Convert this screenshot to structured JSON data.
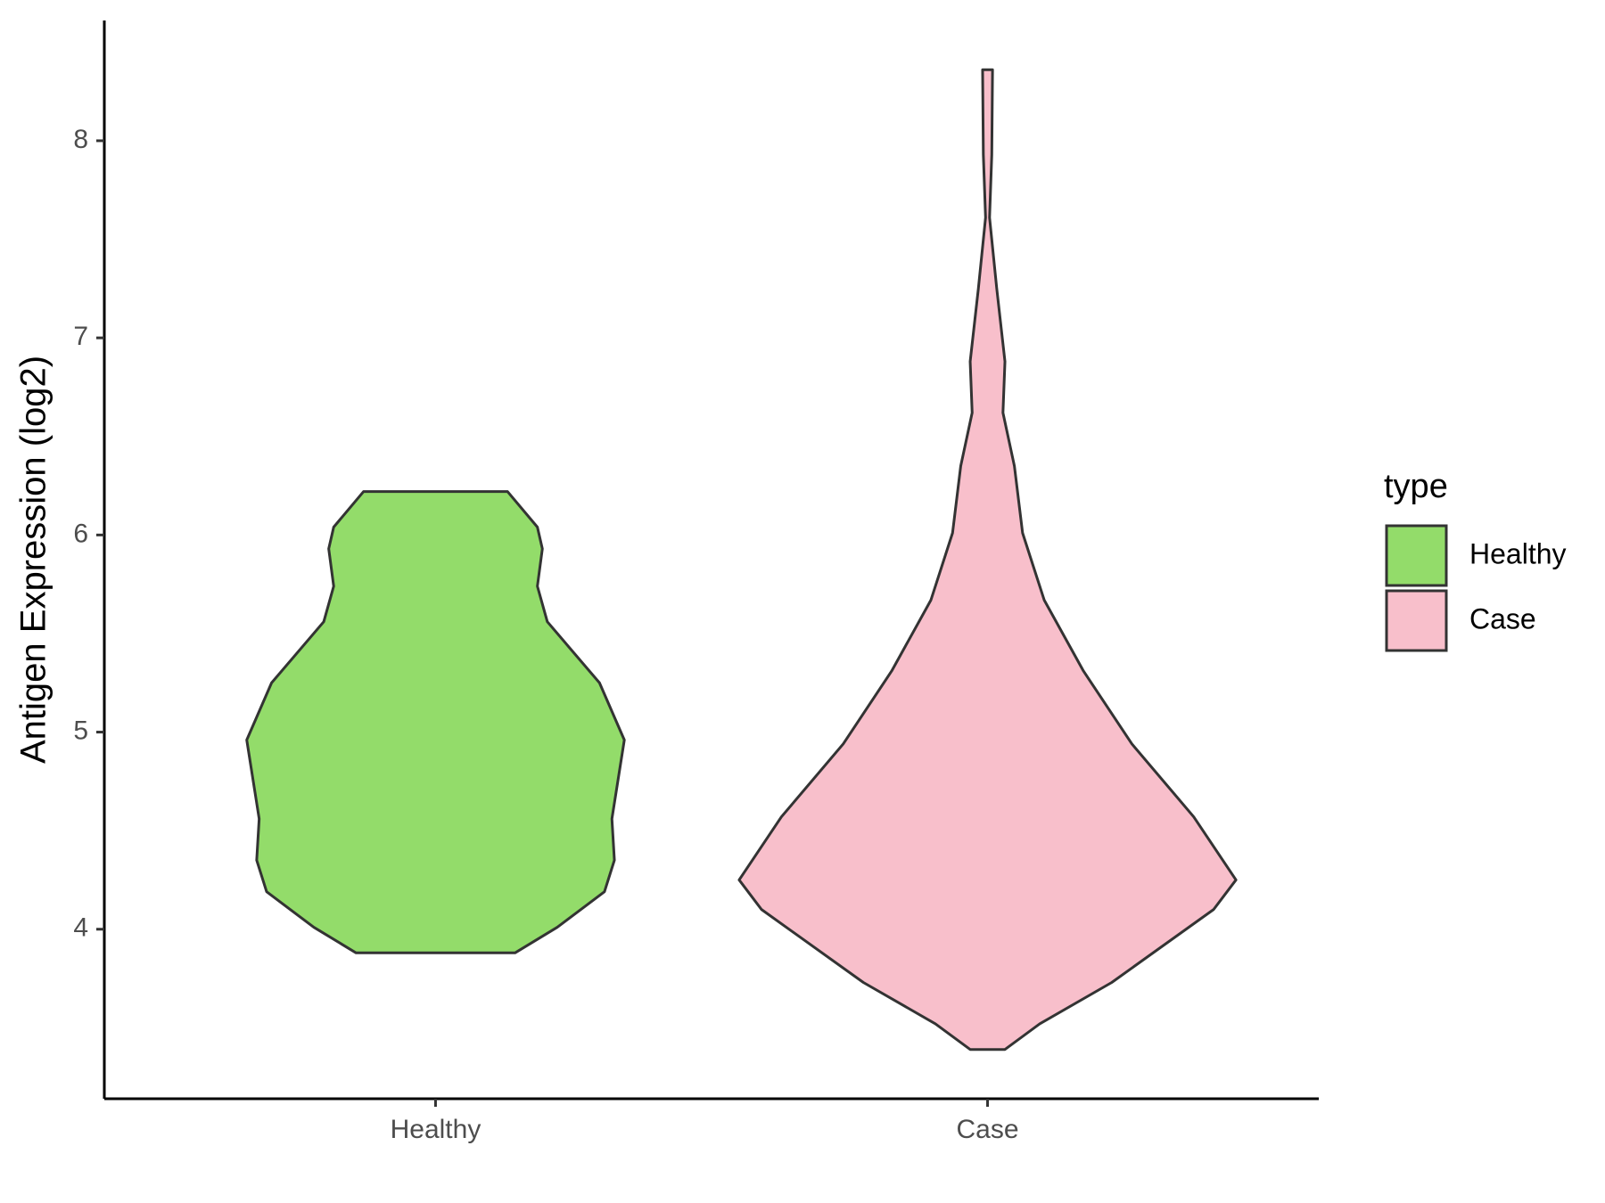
{
  "chart_data": {
    "type": "violin",
    "y_label": "Antigen Expression (log2)",
    "categories": [
      "Healthy",
      "Case"
    ],
    "legend_title": "type",
    "ylim": [
      3.14,
      8.61
    ],
    "yticks": [
      4,
      5,
      6,
      7,
      8
    ],
    "series": [
      {
        "name": "Healthy",
        "color": "#93dc6a",
        "y": [
          6.22,
          6.04,
          5.93,
          5.74,
          5.56,
          5.25,
          4.96,
          4.72,
          4.56,
          4.35,
          4.19,
          4.01,
          3.88
        ],
        "width": [
          0.29,
          0.41,
          0.43,
          0.41,
          0.45,
          0.66,
          0.76,
          0.73,
          0.71,
          0.72,
          0.68,
          0.49,
          0.32
        ]
      },
      {
        "name": "Case",
        "color": "#f8bfcb",
        "y": [
          8.36,
          7.93,
          7.61,
          7.25,
          6.88,
          6.62,
          6.35,
          6.01,
          5.67,
          5.31,
          4.94,
          4.57,
          4.25,
          4.1,
          3.73,
          3.52,
          3.39
        ],
        "width": [
          0.02,
          0.017,
          0.008,
          0.037,
          0.07,
          0.062,
          0.108,
          0.141,
          0.228,
          0.386,
          0.581,
          0.83,
          1,
          0.91,
          0.5,
          0.21,
          0.07
        ]
      }
    ]
  }
}
